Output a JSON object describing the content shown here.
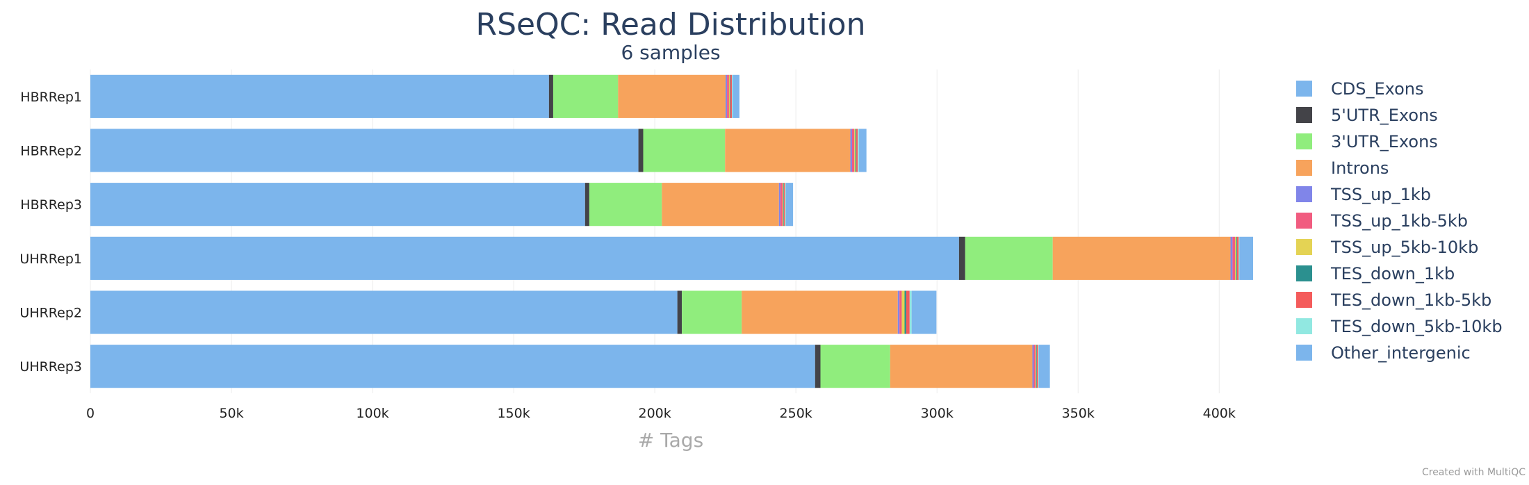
{
  "chart_data": {
    "type": "bar",
    "orientation": "horizontal",
    "stacked": true,
    "title": "RSeQC: Read Distribution",
    "subtitle": "6 samples",
    "xlabel": "# Tags",
    "ylabel": "",
    "xlim": [
      0,
      412000
    ],
    "xticks": [
      0,
      50000,
      100000,
      150000,
      200000,
      250000,
      300000,
      350000,
      400000
    ],
    "xtick_labels": [
      "0",
      "50k",
      "100k",
      "150k",
      "200k",
      "250k",
      "300k",
      "350k",
      "400k"
    ],
    "grid": true,
    "legend_position": "right",
    "categories": [
      "HBRRep1",
      "HBRRep2",
      "HBRRep3",
      "UHRRep1",
      "UHRRep2",
      "UHRRep3"
    ],
    "series": [
      {
        "name": "CDS_Exons",
        "color": "#7cb5ec",
        "values": [
          162500,
          194200,
          175300,
          307800,
          208000,
          256800
        ]
      },
      {
        "name": "5'UTR_Exons",
        "color": "#434348",
        "values": [
          1500,
          1700,
          1500,
          2200,
          1600,
          1900
        ]
      },
      {
        "name": "3'UTR_Exons",
        "color": "#90ed7d",
        "values": [
          23000,
          29000,
          25700,
          31000,
          21200,
          24700
        ]
      },
      {
        "name": "Introns",
        "color": "#f7a35c",
        "values": [
          38100,
          44400,
          41500,
          63000,
          55300,
          50400
        ]
      },
      {
        "name": "TSS_up_1kb",
        "color": "#8085e9",
        "values": [
          500,
          600,
          500,
          700,
          600,
          500
        ]
      },
      {
        "name": "TSS_up_1kb-5kb",
        "color": "#f15c80",
        "values": [
          700,
          800,
          800,
          900,
          800,
          600
        ]
      },
      {
        "name": "TSS_up_5kb-10kb",
        "color": "#e4d354",
        "values": [
          300,
          400,
          300,
          400,
          1000,
          300
        ]
      },
      {
        "name": "TES_down_1kb",
        "color": "#2b908f",
        "values": [
          200,
          300,
          200,
          300,
          600,
          200
        ]
      },
      {
        "name": "TES_down_1kb-5kb",
        "color": "#f45b5b",
        "values": [
          500,
          500,
          400,
          600,
          1200,
          400
        ]
      },
      {
        "name": "TES_down_5kb-10kb",
        "color": "#91e8e1",
        "values": [
          300,
          400,
          300,
          300,
          700,
          300
        ]
      },
      {
        "name": "Other_intergenic",
        "color": "#7cb5ec",
        "values": [
          2400,
          2700,
          2500,
          4800,
          8800,
          3900
        ]
      }
    ]
  },
  "credit": "Created with MultiQC"
}
